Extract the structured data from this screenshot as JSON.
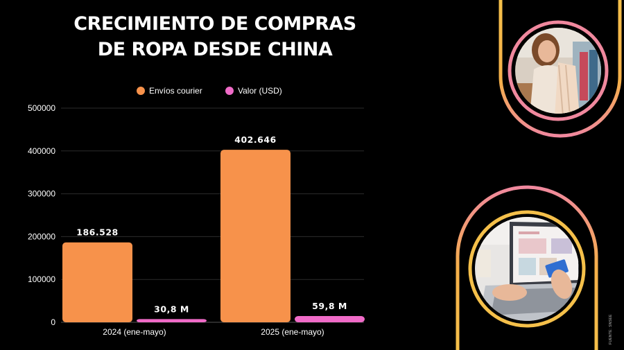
{
  "title_lines": [
    "CRECIMIENTO DE COMPRAS",
    "DE ROPA DESDE CHINA"
  ],
  "source_note": "FUENTE: SNSEE",
  "colors": {
    "background": "#000000",
    "envios": "#f7924b",
    "valor": "#f06bc8",
    "gold_frame": "#f5c04a",
    "pink_frame": "#f0889e"
  },
  "photos": [
    {
      "icon": "woman-shopping-clothes-photo"
    },
    {
      "icon": "laptop-credit-card-photo"
    }
  ],
  "chart_data": {
    "type": "bar",
    "title": "CRECIMIENTO DE COMPRAS DE ROPA DESDE CHINA",
    "categories": [
      "2024 (ene-mayo)",
      "2025 (ene-mayo)"
    ],
    "series": [
      {
        "name": "Envíos courier",
        "values": [
          186528,
          402646
        ],
        "labels": [
          "186.528",
          "402.646"
        ],
        "color": "#f7924b"
      },
      {
        "name": "Valor (USD)",
        "values": [
          30.8,
          59.8
        ],
        "labels": [
          "30,8 M",
          "59,8 M"
        ],
        "color": "#f06bc8"
      }
    ],
    "y_ticks": [
      0,
      100000,
      200000,
      300000,
      400000,
      500000
    ],
    "ylim": [
      0,
      500000
    ],
    "grid": true,
    "legend_position": "top-center"
  }
}
